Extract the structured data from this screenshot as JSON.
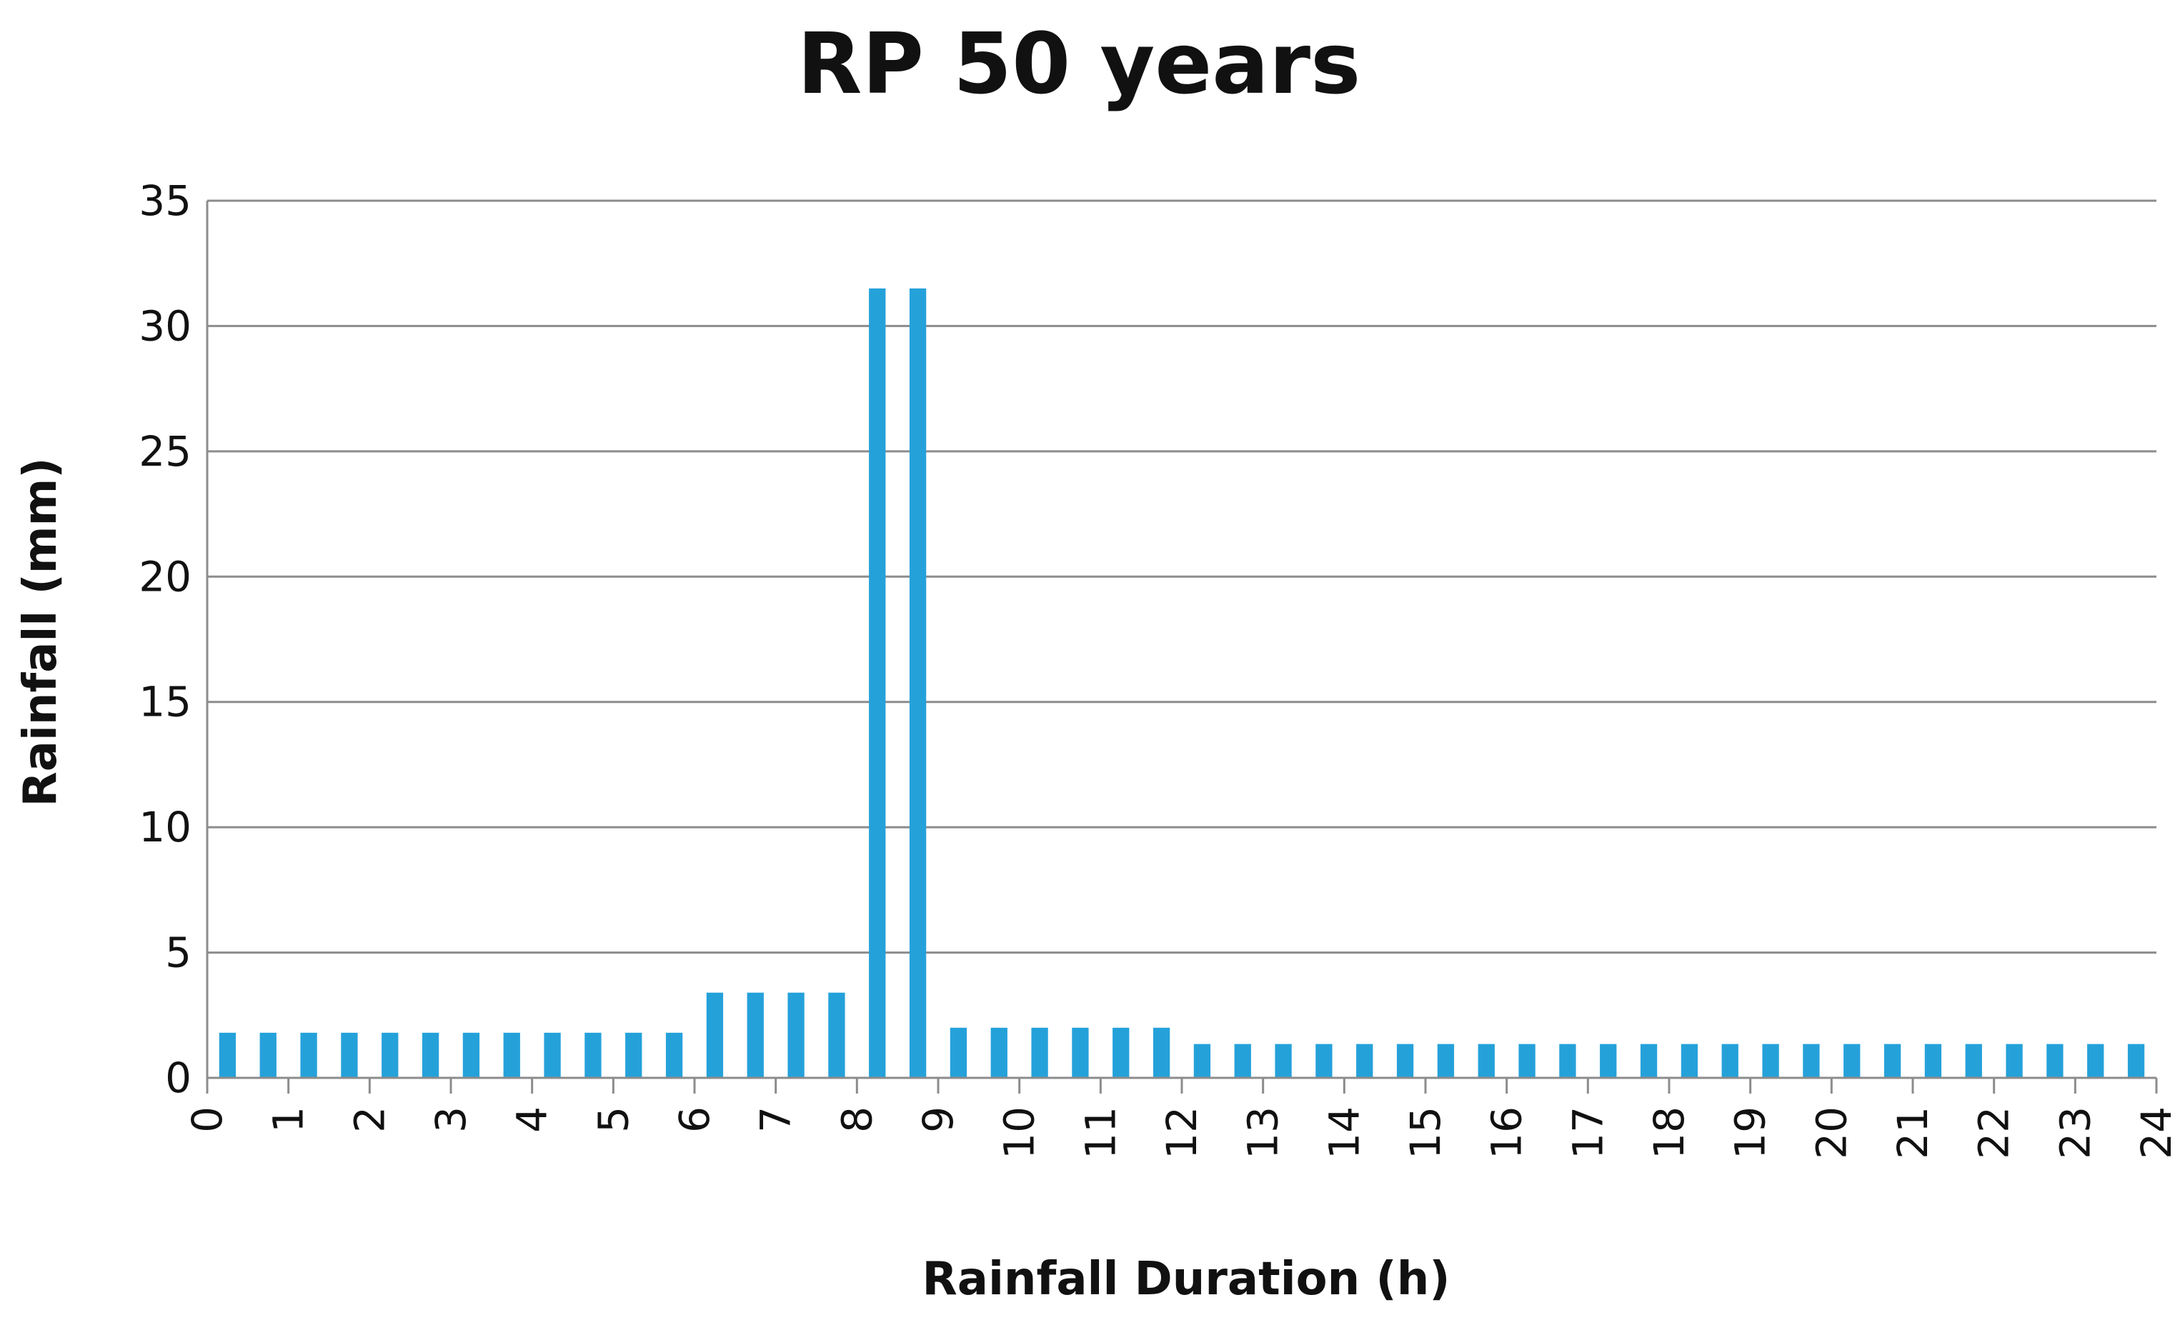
{
  "chart_data": {
    "type": "bar",
    "title": "RP 50 years",
    "xlabel": "Rainfall Duration (h)",
    "ylabel": "Rainfall  (mm)",
    "ylim": [
      0,
      35
    ],
    "yticks": [
      0,
      5,
      10,
      15,
      20,
      25,
      30,
      35
    ],
    "xticks": [
      "0",
      "1",
      "2",
      "3",
      "4",
      "5",
      "6",
      "7",
      "8",
      "9",
      "10",
      "11",
      "12",
      "13",
      "14",
      "15",
      "16",
      "17",
      "18",
      "19",
      "20",
      "21",
      "22",
      "23",
      "24"
    ],
    "grid": true,
    "legend": "none",
    "bar_color": "#25a1da",
    "x": [
      0.5,
      1,
      1.5,
      2,
      2.5,
      3,
      3.5,
      4,
      4.5,
      5,
      5.5,
      6,
      6.5,
      7,
      7.5,
      8,
      8.5,
      9,
      9.5,
      10,
      10.5,
      11,
      11.5,
      12,
      12.5,
      13,
      13.5,
      14,
      14.5,
      15,
      15.5,
      16,
      16.5,
      17,
      17.5,
      18,
      18.5,
      19,
      19.5,
      20,
      20.5,
      21,
      21.5,
      22,
      22.5,
      23,
      23.5,
      24
    ],
    "values": [
      1.8,
      1.8,
      1.8,
      1.8,
      1.8,
      1.8,
      1.8,
      1.8,
      1.8,
      1.8,
      1.8,
      1.8,
      3.4,
      3.4,
      3.4,
      3.4,
      31.5,
      31.5,
      2.0,
      2.0,
      2.0,
      2.0,
      2.0,
      2.0,
      1.35,
      1.35,
      1.35,
      1.35,
      1.35,
      1.35,
      1.35,
      1.35,
      1.35,
      1.35,
      1.35,
      1.35,
      1.35,
      1.35,
      1.35,
      1.35,
      1.35,
      1.35,
      1.35,
      1.35,
      1.35,
      1.35,
      1.35,
      1.35
    ]
  }
}
